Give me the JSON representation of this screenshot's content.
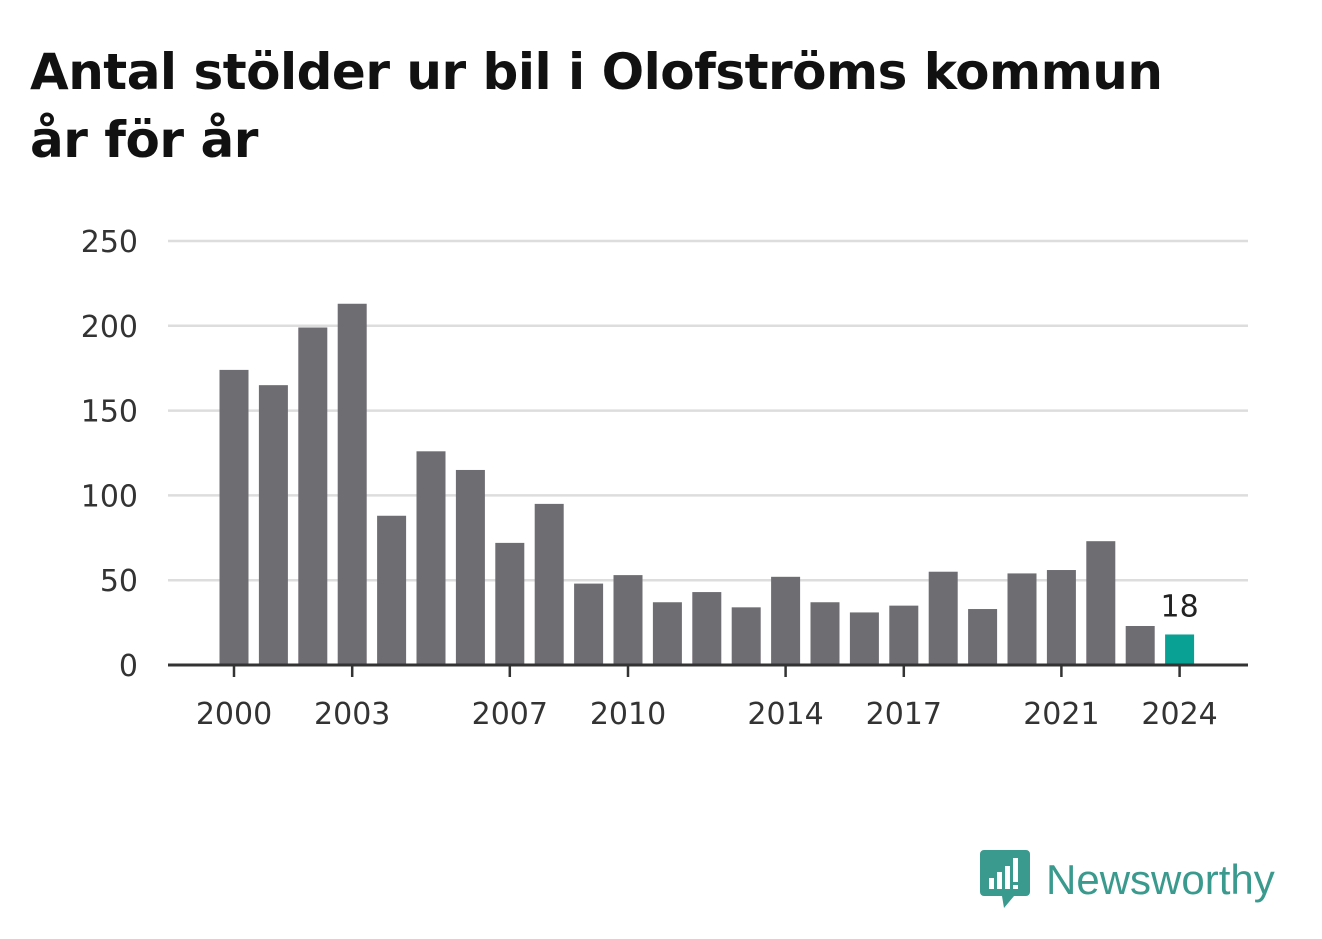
{
  "title": "Antal stölder ur bil i Olofströms kommun år för år",
  "brand": {
    "name": "Newsworthy"
  },
  "colors": {
    "bar": "#6e6d72",
    "highlight": "#0aa195",
    "grid": "#dddddd",
    "axis": "#333333",
    "brand": "#3a9a8e"
  },
  "chart_data": {
    "type": "bar",
    "title": "Antal stölder ur bil i Olofströms kommun år för år",
    "xlabel": "",
    "ylabel": "",
    "ylim": [
      0,
      250
    ],
    "yticks": [
      0,
      50,
      100,
      150,
      200,
      250
    ],
    "grid": true,
    "categories": [
      "2000",
      "2001",
      "2002",
      "2003",
      "2004",
      "2005",
      "2006",
      "2007",
      "2008",
      "2009",
      "2010",
      "2011",
      "2012",
      "2013",
      "2014",
      "2015",
      "2016",
      "2017",
      "2018",
      "2019",
      "2020",
      "2021",
      "2022",
      "2023",
      "2024"
    ],
    "xtick_labels": [
      "2000",
      "2003",
      "2007",
      "2010",
      "2014",
      "2017",
      "2021",
      "2024"
    ],
    "values": [
      174,
      165,
      199,
      213,
      88,
      126,
      115,
      72,
      95,
      48,
      53,
      37,
      43,
      34,
      52,
      37,
      31,
      35,
      55,
      33,
      54,
      56,
      73,
      23,
      18
    ],
    "highlight": {
      "category": "2024",
      "label": "18"
    }
  }
}
